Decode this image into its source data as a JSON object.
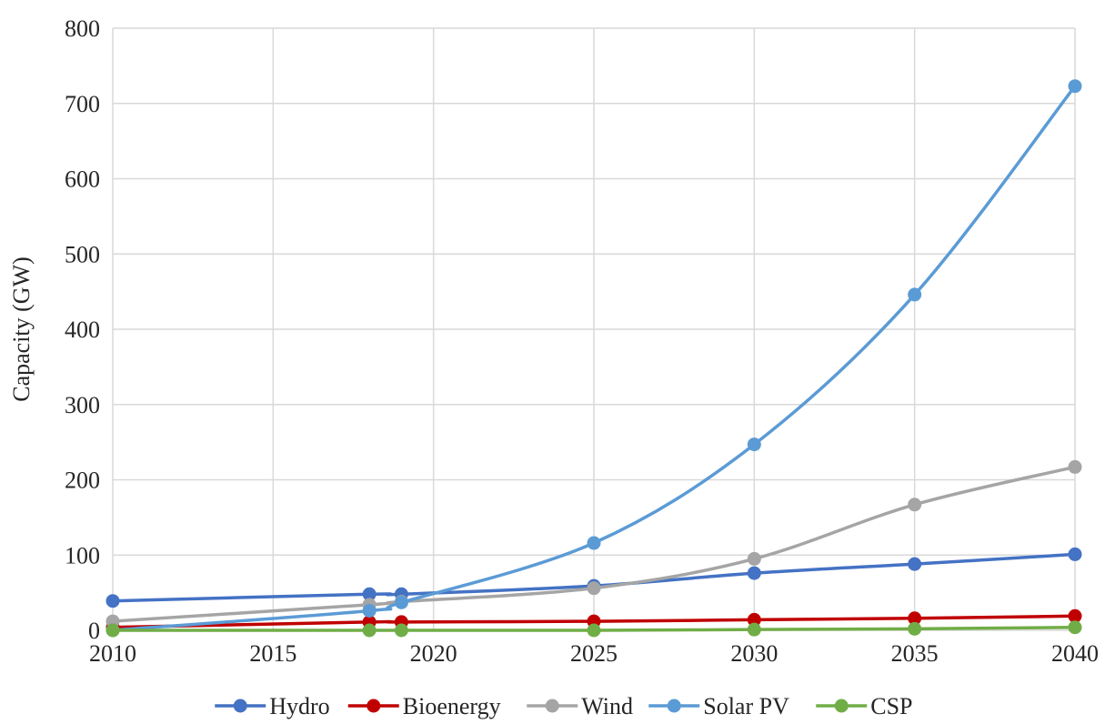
{
  "chart_data": {
    "type": "line",
    "title": "",
    "xlabel": "",
    "ylabel": "Capacity (GW)",
    "xlim": [
      2010,
      2040
    ],
    "ylim": [
      0,
      800
    ],
    "x_ticks": [
      2010,
      2015,
      2020,
      2025,
      2030,
      2035,
      2040
    ],
    "y_ticks": [
      0,
      100,
      200,
      300,
      400,
      500,
      600,
      700,
      800
    ],
    "grid": "vertical and horizontal",
    "legend_position": "bottom",
    "series": [
      {
        "name": "Hydro",
        "color": "#4472C4",
        "points": [
          [
            2010,
            39
          ],
          [
            2018,
            48
          ],
          [
            2019,
            48
          ],
          [
            2025,
            59
          ],
          [
            2030,
            76
          ],
          [
            2035,
            88
          ],
          [
            2040,
            101
          ]
        ]
      },
      {
        "name": "Bioenergy",
        "color": "#C00000",
        "points": [
          [
            2010,
            4
          ],
          [
            2018,
            11
          ],
          [
            2019,
            11
          ],
          [
            2025,
            12
          ],
          [
            2030,
            14
          ],
          [
            2035,
            16
          ],
          [
            2040,
            19
          ]
        ]
      },
      {
        "name": "Wind",
        "color": "#A5A5A5",
        "points": [
          [
            2010,
            12
          ],
          [
            2018,
            34
          ],
          [
            2019,
            38
          ],
          [
            2025,
            56
          ],
          [
            2030,
            95
          ],
          [
            2035,
            167
          ],
          [
            2040,
            217
          ]
        ]
      },
      {
        "name": "Solar PV",
        "color": "#5B9BD5",
        "points": [
          [
            2010,
            0
          ],
          [
            2018,
            26
          ],
          [
            2019,
            37
          ],
          [
            2025,
            116
          ],
          [
            2030,
            247
          ],
          [
            2035,
            446
          ],
          [
            2040,
            723
          ]
        ]
      },
      {
        "name": "CSP",
        "color": "#70AD47",
        "points": [
          [
            2010,
            0
          ],
          [
            2018,
            0
          ],
          [
            2019,
            0
          ],
          [
            2025,
            0
          ],
          [
            2030,
            1
          ],
          [
            2035,
            2
          ],
          [
            2040,
            4
          ]
        ]
      }
    ]
  }
}
